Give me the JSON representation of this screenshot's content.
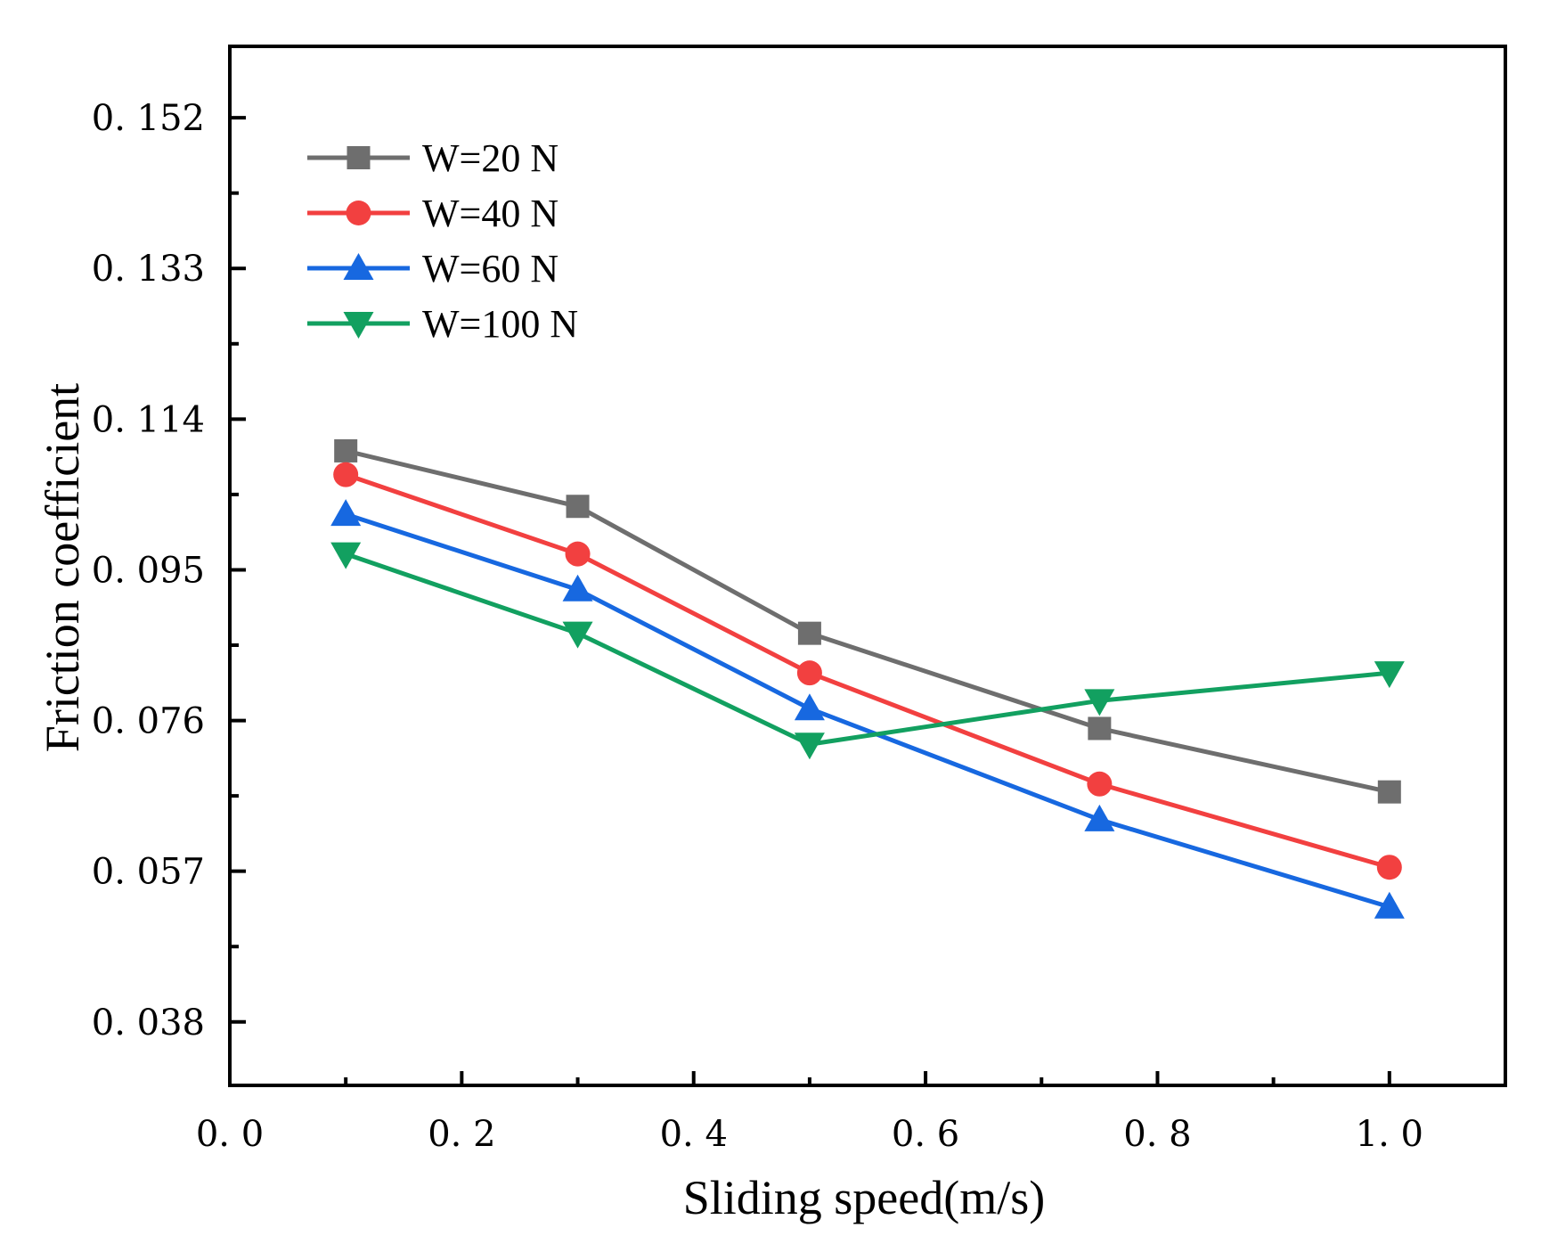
{
  "chart_data": {
    "type": "line",
    "xlabel": "Sliding speed(m/s)",
    "ylabel": "Friction coefficient",
    "xlim": [
      0.0,
      1.1
    ],
    "ylim": [
      0.03,
      0.161
    ],
    "x_ticks": [
      0.0,
      0.2,
      0.4,
      0.6,
      0.8,
      1.0
    ],
    "x_tick_labels": [
      "0. 0",
      "0. 2",
      "0. 4",
      "0. 6",
      "0. 8",
      "1. 0"
    ],
    "x_minor_ticks": [
      0.1,
      0.3,
      0.5,
      0.7,
      0.9
    ],
    "y_ticks": [
      0.038,
      0.057,
      0.076,
      0.095,
      0.114,
      0.133,
      0.152
    ],
    "y_tick_labels": [
      "0. 038",
      "0. 057",
      "0. 076",
      "0. 095",
      "0. 114",
      "0. 133",
      "0. 152"
    ],
    "y_minor_ticks": [
      0.0475,
      0.0665,
      0.0855,
      0.1045,
      0.1235,
      0.1425
    ],
    "grid": false,
    "legend_position": "top-left",
    "x": [
      0.1,
      0.3,
      0.5,
      0.75,
      1.0
    ],
    "series": [
      {
        "name": "W=20 N",
        "values": [
          0.11,
          0.103,
          0.087,
          0.075,
          0.067
        ],
        "color": "#6e6e6e",
        "marker": "square"
      },
      {
        "name": "W=40 N",
        "values": [
          0.107,
          0.097,
          0.082,
          0.068,
          0.0575
        ],
        "color": "#f24040",
        "marker": "circle"
      },
      {
        "name": "W=60 N",
        "values": [
          0.102,
          0.0925,
          0.0775,
          0.0635,
          0.0525
        ],
        "color": "#1768e0",
        "marker": "triangle-up"
      },
      {
        "name": "W=100 N",
        "values": [
          0.097,
          0.087,
          0.073,
          0.0785,
          0.082
        ],
        "color": "#12a060",
        "marker": "triangle-down"
      }
    ]
  }
}
